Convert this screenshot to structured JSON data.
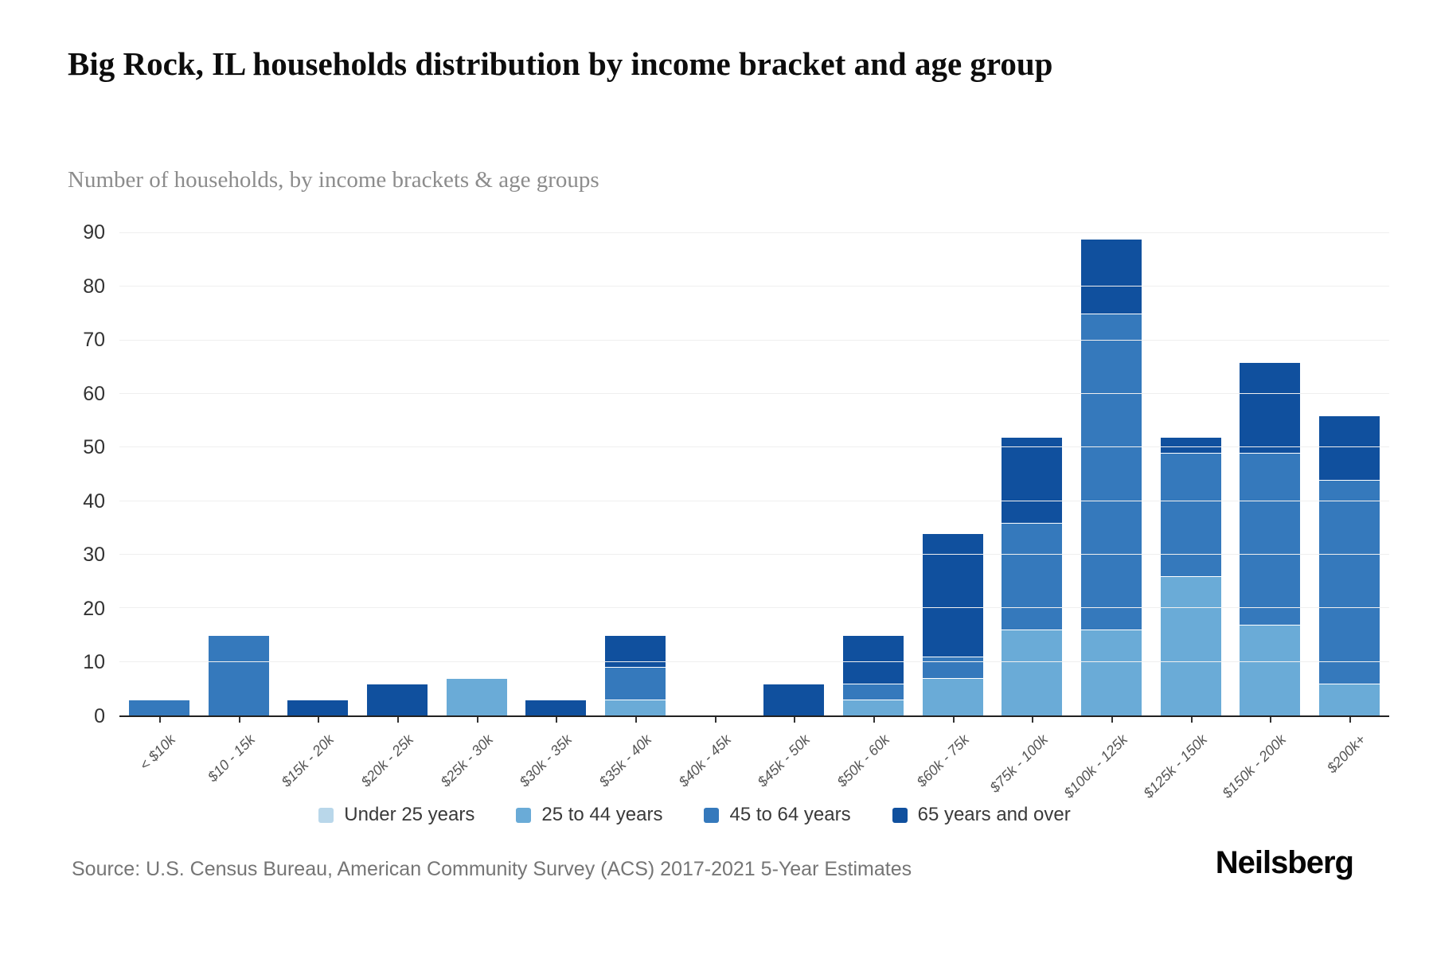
{
  "header": {
    "title": "Big Rock, IL households distribution by income bracket and age group",
    "subtitle": "Number of households, by income brackets & age groups"
  },
  "footer": {
    "source": "Source: U.S. Census Bureau, American Community Survey (ACS) 2017-2021 5-Year Estimates",
    "brand": "Neilsberg"
  },
  "colors": {
    "axis_line": "#222222",
    "gridline": "#efefef",
    "tick_text": "#333333",
    "x_label_text": "#555555",
    "subtitle_text": "#8c8c8c"
  },
  "chart_data": {
    "type": "bar",
    "stacked": true,
    "title": "Big Rock, IL households distribution by income bracket and age group",
    "subtitle": "Number of households, by income brackets & age groups",
    "xlabel": "",
    "ylabel": "Number of households",
    "ylim": [
      0,
      90
    ],
    "yticks": [
      0,
      10,
      20,
      30,
      40,
      50,
      60,
      70,
      80,
      90
    ],
    "grid": true,
    "legend_position": "bottom",
    "categories": [
      "< $10k",
      "$10 - 15k",
      "$15k - 20k",
      "$20k - 25k",
      "$25k - 30k",
      "$30k - 35k",
      "$35k - 40k",
      "$40k - 45k",
      "$45k - 50k",
      "$50k - 60k",
      "$60k - 75k",
      "$75k - 100k",
      "$100k - 125k",
      "$125k - 150k",
      "$150k - 200k",
      "$200k+"
    ],
    "series": [
      {
        "name": "Under 25 years",
        "color": "#b9d7ea",
        "values": [
          0,
          0,
          0,
          0,
          0,
          0,
          0,
          0,
          0,
          0,
          0,
          0,
          0,
          0,
          0,
          0
        ]
      },
      {
        "name": "25 to 44 years",
        "color": "#6aabd7",
        "values": [
          0,
          0,
          0,
          0,
          7,
          0,
          3,
          0,
          0,
          3,
          7,
          16,
          16,
          26,
          17,
          6
        ]
      },
      {
        "name": "45 to 64 years",
        "color": "#3579bc",
        "values": [
          3,
          15,
          0,
          0,
          0,
          0,
          6,
          0,
          0,
          3,
          4,
          20,
          59,
          23,
          32,
          38
        ]
      },
      {
        "name": "65 years and over",
        "color": "#10509e",
        "values": [
          0,
          0,
          3,
          6,
          0,
          3,
          6,
          0,
          6,
          9,
          23,
          16,
          14,
          3,
          17,
          12
        ]
      }
    ],
    "totals": [
      3,
      15,
      3,
      6,
      7,
      3,
      15,
      0,
      6,
      15,
      34,
      52,
      89,
      52,
      66,
      56
    ]
  }
}
